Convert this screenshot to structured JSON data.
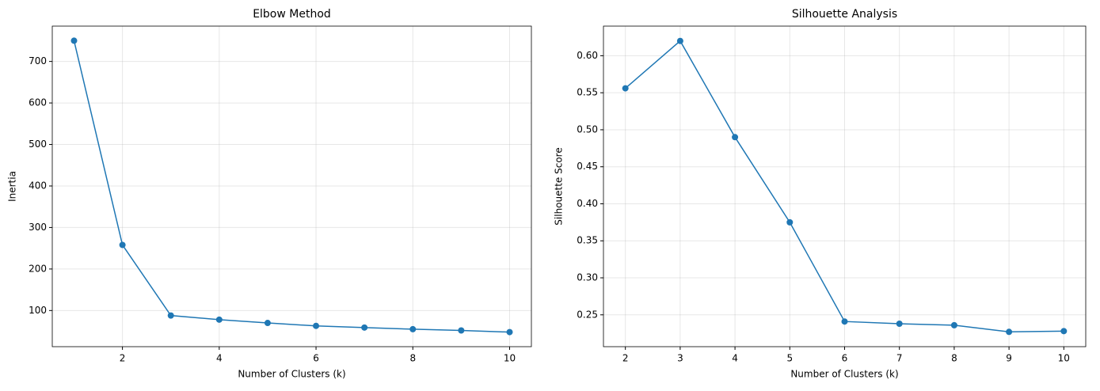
{
  "chart_data": [
    {
      "type": "line",
      "title": "Elbow Method",
      "x_label": "Number of Clusters (k)",
      "y_label": "Inertia",
      "x": [
        1,
        2,
        3,
        4,
        5,
        6,
        7,
        8,
        9,
        10
      ],
      "series": [
        {
          "color": "#1f77b4",
          "values": [
            750,
            258,
            88,
            78,
            70,
            63,
            59,
            55,
            52,
            48
          ]
        }
      ],
      "xlim": [
        0.55,
        10.45
      ],
      "xticks": [
        2,
        4,
        6,
        8,
        10
      ],
      "ylim": [
        12.9,
        785.1
      ],
      "yticks": [
        100,
        200,
        300,
        400,
        500,
        600,
        700
      ],
      "grid": true
    },
    {
      "type": "line",
      "title": "Silhouette Analysis",
      "x_label": "Number of Clusters (k)",
      "y_label": "Silhouette Score",
      "x": [
        2,
        3,
        4,
        5,
        6,
        7,
        8,
        9,
        10
      ],
      "series": [
        {
          "color": "#1f77b4",
          "values": [
            0.556,
            0.62,
            0.49,
            0.375,
            0.241,
            0.238,
            0.236,
            0.227,
            0.228
          ]
        }
      ],
      "xlim": [
        1.6,
        10.4
      ],
      "xticks": [
        2,
        3,
        4,
        5,
        6,
        7,
        8,
        9,
        10
      ],
      "ylim": [
        0.207,
        0.64
      ],
      "yticks": [
        0.25,
        {
          "value": 0.3,
          "label": "0.30"
        },
        0.35,
        {
          "value": 0.4,
          "label": "0.40"
        },
        0.45,
        {
          "value": 0.5,
          "label": "0.50"
        },
        0.55,
        {
          "value": 0.6,
          "label": "0.60"
        }
      ],
      "grid": true
    }
  ]
}
